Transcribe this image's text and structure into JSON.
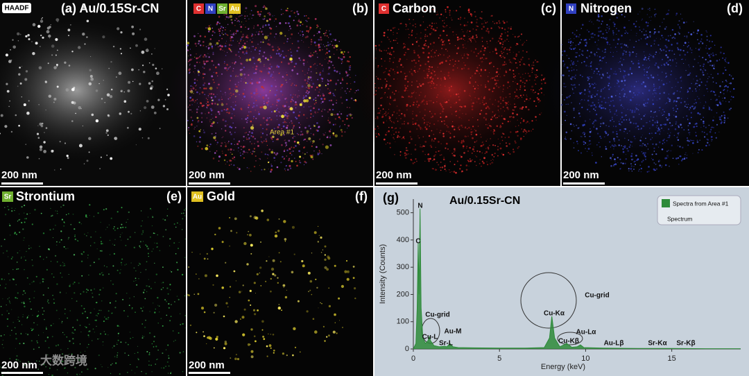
{
  "panels": [
    {
      "label": "(a) Au/0.15Sr-CN",
      "badge": "HAADF",
      "scale_bar": "200 nm"
    },
    {
      "label": "(b)",
      "badges": [
        "C",
        "N",
        "Sr",
        "Au"
      ],
      "annotation": "Area #1",
      "scale_bar": "200 nm"
    },
    {
      "label": "(c)",
      "badge": "C",
      "name": "Carbon",
      "scale_bar": "200 nm"
    },
    {
      "label": "(d)",
      "badge": "N",
      "name": "Nitrogen",
      "scale_bar": "200 nm"
    },
    {
      "label": "(e)",
      "badge": "Sr",
      "name": "Strontium",
      "scale_bar": "200 nm"
    },
    {
      "label": "(f)",
      "badge": "Au",
      "name": "Gold",
      "scale_bar": "200 nm"
    }
  ],
  "watermark": "大数跨境",
  "chart_data": {
    "type": "area",
    "panel_label": "(g)",
    "title": "Au/0.15Sr-CN",
    "xlabel": "Energy (keV)",
    "ylabel": "Intensity (Counts)",
    "x": [
      0,
      0.15,
      0.22,
      0.28,
      0.33,
      0.39,
      0.45,
      0.55,
      0.7,
      0.85,
      0.93,
      1.0,
      1.2,
      1.5,
      1.8,
      1.95,
      2.12,
      2.3,
      2.6,
      3.5,
      5,
      6.5,
      7.6,
      7.9,
      8.04,
      8.2,
      8.5,
      8.9,
      9.2,
      9.5,
      9.7,
      9.9,
      11,
      13,
      15,
      17,
      19
    ],
    "series": [
      {
        "name": "Spectra from Area #1",
        "color": "#2e8b3a",
        "values": [
          0,
          20,
          150,
          390,
          200,
          515,
          150,
          40,
          20,
          30,
          45,
          30,
          12,
          8,
          10,
          8,
          20,
          8,
          5,
          4,
          3,
          3,
          5,
          40,
          120,
          40,
          8,
          20,
          6,
          8,
          15,
          5,
          3,
          2,
          2,
          1,
          1
        ]
      }
    ],
    "legend_note": "Spectrum",
    "xlim": [
      0,
      19
    ],
    "ylim": [
      0,
      550
    ],
    "xticks": [
      0,
      5,
      10,
      15
    ],
    "yticks": [
      0,
      100,
      200,
      300,
      400,
      500
    ],
    "annotations": [
      "N",
      "C",
      "Cu-grid",
      "Cu-L",
      "Au-M",
      "Sr-L",
      "Cu-Kα",
      "Cu-grid",
      "Au-Lα",
      "Cu-Kβ",
      "Au-Lβ",
      "Sr-Kα",
      "Sr-Kβ"
    ]
  }
}
